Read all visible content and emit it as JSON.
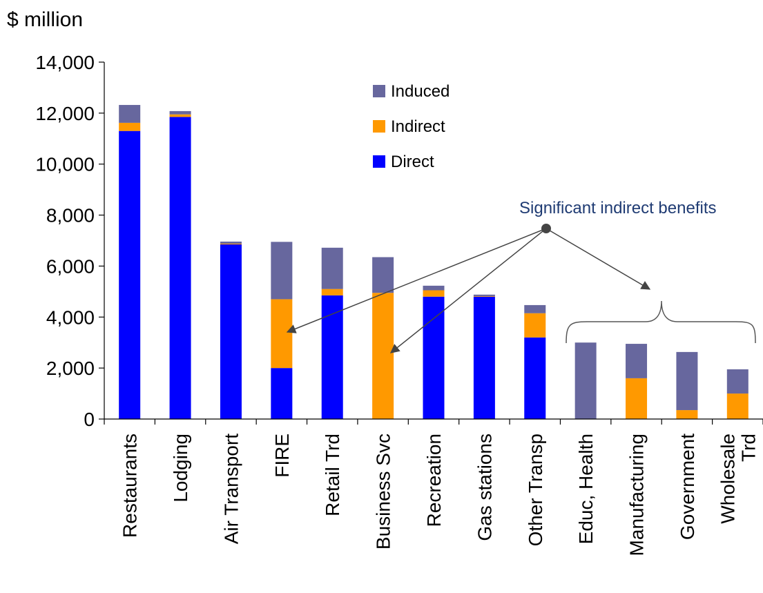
{
  "chart_data": {
    "type": "bar",
    "stacked": true,
    "unit_label": "$ million",
    "title": "",
    "xlabel": "",
    "ylabel": "",
    "ylim": [
      0,
      14000
    ],
    "yticks": [
      0,
      2000,
      4000,
      6000,
      8000,
      10000,
      12000,
      14000
    ],
    "ytick_labels": [
      "0",
      "2,000",
      "4,000",
      "6,000",
      "8,000",
      "10,000",
      "12,000",
      "14,000"
    ],
    "grid": false,
    "legend_position": "top-center",
    "categories": [
      "Restaurants",
      "Lodging",
      "Air Transport",
      "FIRE",
      "Retail Trd",
      "Business Svc",
      "Recreation",
      "Gas stations",
      "Other Transp",
      "Educ, Health",
      "Manufacturing",
      "Government",
      [
        "Wholesale",
        "Trd"
      ]
    ],
    "series": [
      {
        "name": "Direct",
        "color": "#0000ff",
        "values": [
          11300,
          11850,
          6850,
          2000,
          4850,
          0,
          4800,
          4800,
          3200,
          0,
          0,
          0,
          0
        ]
      },
      {
        "name": "Indirect",
        "color": "#ff9900",
        "values": [
          320,
          100,
          30,
          2700,
          250,
          4950,
          250,
          20,
          950,
          0,
          1600,
          350,
          1000
        ]
      },
      {
        "name": "Induced",
        "color": "#67679e",
        "values": [
          700,
          130,
          80,
          2250,
          1620,
          1400,
          180,
          60,
          320,
          3000,
          1350,
          2280,
          950
        ]
      }
    ],
    "legend_order": [
      "Induced",
      "Indirect",
      "Direct"
    ],
    "annotation": {
      "text": "Significant indirect benefits",
      "color": "#1f3b73"
    }
  }
}
